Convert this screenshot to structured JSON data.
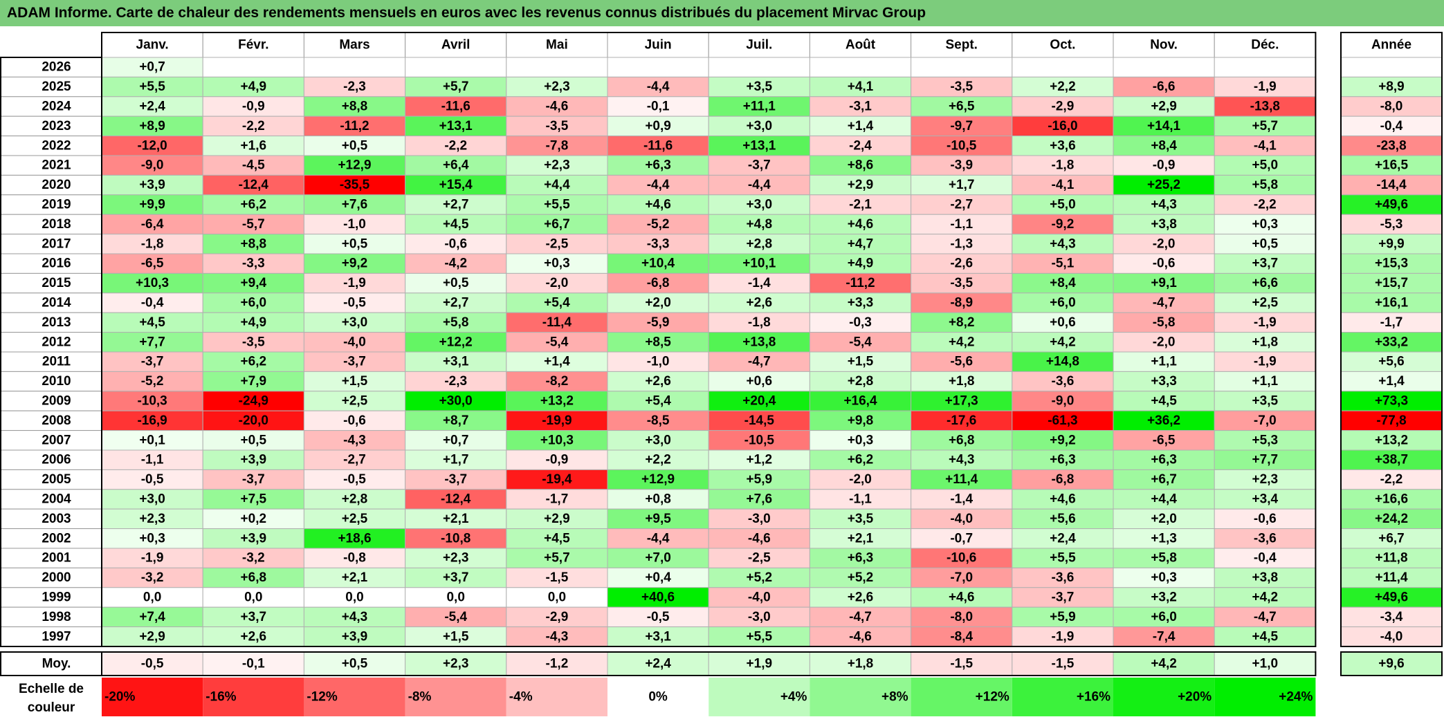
{
  "title": "ADAM Informe. Carte de chaleur des rendements mensuels en euros avec les revenus connus distribués du placement Mirvac Group",
  "chart_data": {
    "type": "heatmap",
    "months": [
      "Janv.",
      "Févr.",
      "Mars",
      "Avril",
      "Mai",
      "Juin",
      "Juil.",
      "Août",
      "Sept.",
      "Oct.",
      "Nov.",
      "Déc."
    ],
    "year_header": "Année",
    "rows": [
      {
        "year": "2026",
        "values": [
          "+0,7",
          null,
          null,
          null,
          null,
          null,
          null,
          null,
          null,
          null,
          null,
          null
        ],
        "annual": null
      },
      {
        "year": "2025",
        "values": [
          "+5,5",
          "+4,9",
          "-2,3",
          "+5,7",
          "+2,3",
          "-4,4",
          "+3,5",
          "+4,1",
          "-3,5",
          "+2,2",
          "-6,6",
          "-1,9"
        ],
        "annual": "+8,9"
      },
      {
        "year": "2024",
        "values": [
          "+2,4",
          "-0,9",
          "+8,8",
          "-11,6",
          "-4,6",
          "-0,1",
          "+11,1",
          "-3,1",
          "+6,5",
          "-2,9",
          "+2,9",
          "-13,8"
        ],
        "annual": "-8,0"
      },
      {
        "year": "2023",
        "values": [
          "+8,9",
          "-2,2",
          "-11,2",
          "+13,1",
          "-3,5",
          "+0,9",
          "+3,0",
          "+1,4",
          "-9,7",
          "-16,0",
          "+14,1",
          "+5,7"
        ],
        "annual": "-0,4"
      },
      {
        "year": "2022",
        "values": [
          "-12,0",
          "+1,6",
          "+0,5",
          "-2,2",
          "-7,8",
          "-11,6",
          "+13,1",
          "-2,4",
          "-10,5",
          "+3,6",
          "+8,4",
          "-4,1"
        ],
        "annual": "-23,8"
      },
      {
        "year": "2021",
        "values": [
          "-9,0",
          "-4,5",
          "+12,9",
          "+6,4",
          "+2,3",
          "+6,3",
          "-3,7",
          "+8,6",
          "-3,9",
          "-1,8",
          "-0,9",
          "+5,0"
        ],
        "annual": "+16,5"
      },
      {
        "year": "2020",
        "values": [
          "+3,9",
          "-12,4",
          "-35,5",
          "+15,4",
          "+4,4",
          "-4,4",
          "-4,4",
          "+2,9",
          "+1,7",
          "-4,1",
          "+25,2",
          "+5,8"
        ],
        "annual": "-14,4"
      },
      {
        "year": "2019",
        "values": [
          "+9,9",
          "+6,2",
          "+7,6",
          "+2,7",
          "+5,5",
          "+4,6",
          "+3,0",
          "-2,1",
          "-2,7",
          "+5,0",
          "+4,3",
          "-2,2"
        ],
        "annual": "+49,6"
      },
      {
        "year": "2018",
        "values": [
          "-6,4",
          "-5,7",
          "-1,0",
          "+4,5",
          "+6,7",
          "-5,2",
          "+4,8",
          "+4,6",
          "-1,1",
          "-9,2",
          "+3,8",
          "+0,3"
        ],
        "annual": "-5,3"
      },
      {
        "year": "2017",
        "values": [
          "-1,8",
          "+8,8",
          "+0,5",
          "-0,6",
          "-2,5",
          "-3,3",
          "+2,8",
          "+4,7",
          "-1,3",
          "+4,3",
          "-2,0",
          "+0,5"
        ],
        "annual": "+9,9"
      },
      {
        "year": "2016",
        "values": [
          "-6,5",
          "-3,3",
          "+9,2",
          "-4,2",
          "+0,3",
          "+10,4",
          "+10,1",
          "+4,9",
          "-2,6",
          "-5,1",
          "-0,6",
          "+3,7"
        ],
        "annual": "+15,3"
      },
      {
        "year": "2015",
        "values": [
          "+10,3",
          "+9,4",
          "-1,9",
          "+0,5",
          "-2,0",
          "-6,8",
          "-1,4",
          "-11,2",
          "-3,5",
          "+8,4",
          "+9,1",
          "+6,6"
        ],
        "annual": "+15,7"
      },
      {
        "year": "2014",
        "values": [
          "-0,4",
          "+6,0",
          "-0,5",
          "+2,7",
          "+5,4",
          "+2,0",
          "+2,6",
          "+3,3",
          "-8,9",
          "+6,0",
          "-4,7",
          "+2,5"
        ],
        "annual": "+16,1"
      },
      {
        "year": "2013",
        "values": [
          "+4,5",
          "+4,9",
          "+3,0",
          "+5,8",
          "-11,4",
          "-5,9",
          "-1,8",
          "-0,3",
          "+8,2",
          "+0,6",
          "-5,8",
          "-1,9"
        ],
        "annual": "-1,7"
      },
      {
        "year": "2012",
        "values": [
          "+7,7",
          "-3,5",
          "-4,0",
          "+12,2",
          "-5,4",
          "+8,5",
          "+13,8",
          "-5,4",
          "+4,2",
          "+4,2",
          "-2,0",
          "+1,8"
        ],
        "annual": "+33,2"
      },
      {
        "year": "2011",
        "values": [
          "-3,7",
          "+6,2",
          "-3,7",
          "+3,1",
          "+1,4",
          "-1,0",
          "-4,7",
          "+1,5",
          "-5,6",
          "+14,8",
          "+1,1",
          "-1,9"
        ],
        "annual": "+5,6"
      },
      {
        "year": "2010",
        "values": [
          "-5,2",
          "+7,9",
          "+1,5",
          "-2,3",
          "-8,2",
          "+2,6",
          "+0,6",
          "+2,8",
          "+1,8",
          "-3,6",
          "+3,3",
          "+1,1"
        ],
        "annual": "+1,4"
      },
      {
        "year": "2009",
        "values": [
          "-10,3",
          "-24,9",
          "+2,5",
          "+30,0",
          "+13,2",
          "+5,4",
          "+20,4",
          "+16,4",
          "+17,3",
          "-9,0",
          "+4,5",
          "+3,5"
        ],
        "annual": "+73,3"
      },
      {
        "year": "2008",
        "values": [
          "-16,9",
          "-20,0",
          "-0,6",
          "+8,7",
          "-19,9",
          "-8,5",
          "-14,5",
          "+9,8",
          "-17,6",
          "-61,3",
          "+36,2",
          "-7,0"
        ],
        "annual": "-77,8"
      },
      {
        "year": "2007",
        "values": [
          "+0,1",
          "+0,5",
          "-4,3",
          "+0,7",
          "+10,3",
          "+3,0",
          "-10,5",
          "+0,3",
          "+6,8",
          "+9,2",
          "-6,5",
          "+5,3"
        ],
        "annual": "+13,2"
      },
      {
        "year": "2006",
        "values": [
          "-1,1",
          "+3,9",
          "-2,7",
          "+1,7",
          "-0,9",
          "+2,2",
          "+1,2",
          "+6,2",
          "+4,3",
          "+6,3",
          "+6,3",
          "+7,7"
        ],
        "annual": "+38,7"
      },
      {
        "year": "2005",
        "values": [
          "-0,5",
          "-3,7",
          "-0,5",
          "-3,7",
          "-19,4",
          "+12,9",
          "+5,9",
          "-2,0",
          "+11,4",
          "-6,8",
          "+6,7",
          "+2,3"
        ],
        "annual": "-2,2"
      },
      {
        "year": "2004",
        "values": [
          "+3,0",
          "+7,5",
          "+2,8",
          "-12,4",
          "-1,7",
          "+0,8",
          "+7,6",
          "-1,1",
          "-1,4",
          "+4,6",
          "+4,4",
          "+3,4"
        ],
        "annual": "+16,6"
      },
      {
        "year": "2003",
        "values": [
          "+2,3",
          "+0,2",
          "+2,5",
          "+2,1",
          "+2,9",
          "+9,5",
          "-3,0",
          "+3,5",
          "-4,0",
          "+5,6",
          "+2,0",
          "-0,6"
        ],
        "annual": "+24,2"
      },
      {
        "year": "2002",
        "values": [
          "+0,3",
          "+3,9",
          "+18,6",
          "-10,8",
          "+4,5",
          "-4,4",
          "-4,6",
          "+2,1",
          "-0,7",
          "+2,4",
          "+1,3",
          "-3,6"
        ],
        "annual": "+6,7"
      },
      {
        "year": "2001",
        "values": [
          "-1,9",
          "-3,2",
          "-0,8",
          "+2,3",
          "+5,7",
          "+7,0",
          "-2,5",
          "+6,3",
          "-10,6",
          "+5,5",
          "+5,8",
          "-0,4"
        ],
        "annual": "+11,8"
      },
      {
        "year": "2000",
        "values": [
          "-3,2",
          "+6,8",
          "+2,1",
          "+3,7",
          "-1,5",
          "+0,4",
          "+5,2",
          "+5,2",
          "-7,0",
          "-3,6",
          "+0,3",
          "+3,8"
        ],
        "annual": "+11,4"
      },
      {
        "year": "1999",
        "values": [
          "0,0",
          "0,0",
          "0,0",
          "0,0",
          "0,0",
          "+40,6",
          "-4,0",
          "+2,6",
          "+4,6",
          "-3,7",
          "+3,2",
          "+4,2"
        ],
        "annual": "+49,6"
      },
      {
        "year": "1998",
        "values": [
          "+7,4",
          "+3,7",
          "+4,3",
          "-5,4",
          "-2,9",
          "-0,5",
          "-3,0",
          "-4,7",
          "-8,0",
          "+5,9",
          "+6,0",
          "-4,7"
        ],
        "annual": "-3,4"
      },
      {
        "year": "1997",
        "values": [
          "+2,9",
          "+2,6",
          "+3,9",
          "+1,5",
          "-4,3",
          "+3,1",
          "+5,5",
          "-4,6",
          "-8,4",
          "-1,9",
          "-7,4",
          "+4,5"
        ],
        "annual": "-4,0"
      }
    ],
    "average": {
      "label": "Moy.",
      "values": [
        "-0,5",
        "-0,1",
        "+0,5",
        "+2,3",
        "-1,2",
        "+2,4",
        "+1,9",
        "+1,8",
        "-1,5",
        "-1,5",
        "+4,2",
        "+1,0"
      ],
      "annual": "+9,6"
    },
    "color_scale": {
      "label": "Echelle de couleur",
      "steps": [
        "-20%",
        "-16%",
        "-12%",
        "-8%",
        "-4%",
        "0%",
        "+4%",
        "+8%",
        "+12%",
        "+16%",
        "+20%",
        "+24%"
      ],
      "step_values": [
        -20,
        -16,
        -12,
        -8,
        -4,
        0,
        4,
        8,
        12,
        16,
        20,
        24
      ]
    },
    "colors": {
      "negative": "#ff0000",
      "positive": "#00ee00",
      "neutral": "#ffffff",
      "title_bg": "#7ccc7c"
    }
  }
}
